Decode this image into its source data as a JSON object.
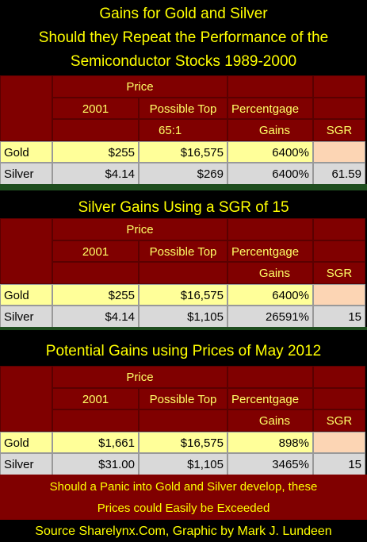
{
  "tables": [
    {
      "title_lines": [
        "Gains for Gold and Silver",
        "Should they Repeat the Performance of the",
        "Semiconductor Stocks 1989-2000"
      ],
      "header": {
        "price": "Price",
        "year": "2001",
        "possible_top": "Possible Top",
        "percentage": "Percentgage",
        "ratio": "65:1",
        "gains": "Gains",
        "sgr": "SGR"
      },
      "rows": [
        [
          "Gold",
          "$255",
          "$16,575",
          "6400%"
        ],
        [
          "Silver",
          "$4.14",
          "$269",
          "6400%",
          "61.59"
        ]
      ]
    },
    {
      "title_lines": [
        "Silver Gains Using a SGR of 15"
      ],
      "header": {
        "price": "Price",
        "year": "2001",
        "possible_top": "Possible Top",
        "percentage": "Percentgage",
        "gains": "Gains",
        "sgr": "SGR"
      },
      "rows": [
        [
          "Gold",
          "$255",
          "$16,575",
          "6400%"
        ],
        [
          "Silver",
          "$4.14",
          "$1,105",
          "26591%",
          "15"
        ]
      ]
    },
    {
      "title_lines": [
        "Potential Gains using Prices of May 2012"
      ],
      "header": {
        "price": "Price",
        "year": "2001",
        "possible_top": "Possible Top",
        "percentage": "Percentgage",
        "gains": "Gains",
        "sgr": "SGR"
      },
      "rows": [
        [
          "Gold",
          "$1,661",
          "$16,575",
          "898%"
        ],
        [
          "Silver",
          "$31.00",
          "$1,105",
          "3465%",
          "15"
        ]
      ]
    }
  ],
  "note_lines": [
    "Should a Panic into Gold and Silver develop, these",
    "Prices could Easily be Exceeded"
  ],
  "footer": "Source Sharelynx.Com,  Graphic by Mark J. Lundeen"
}
